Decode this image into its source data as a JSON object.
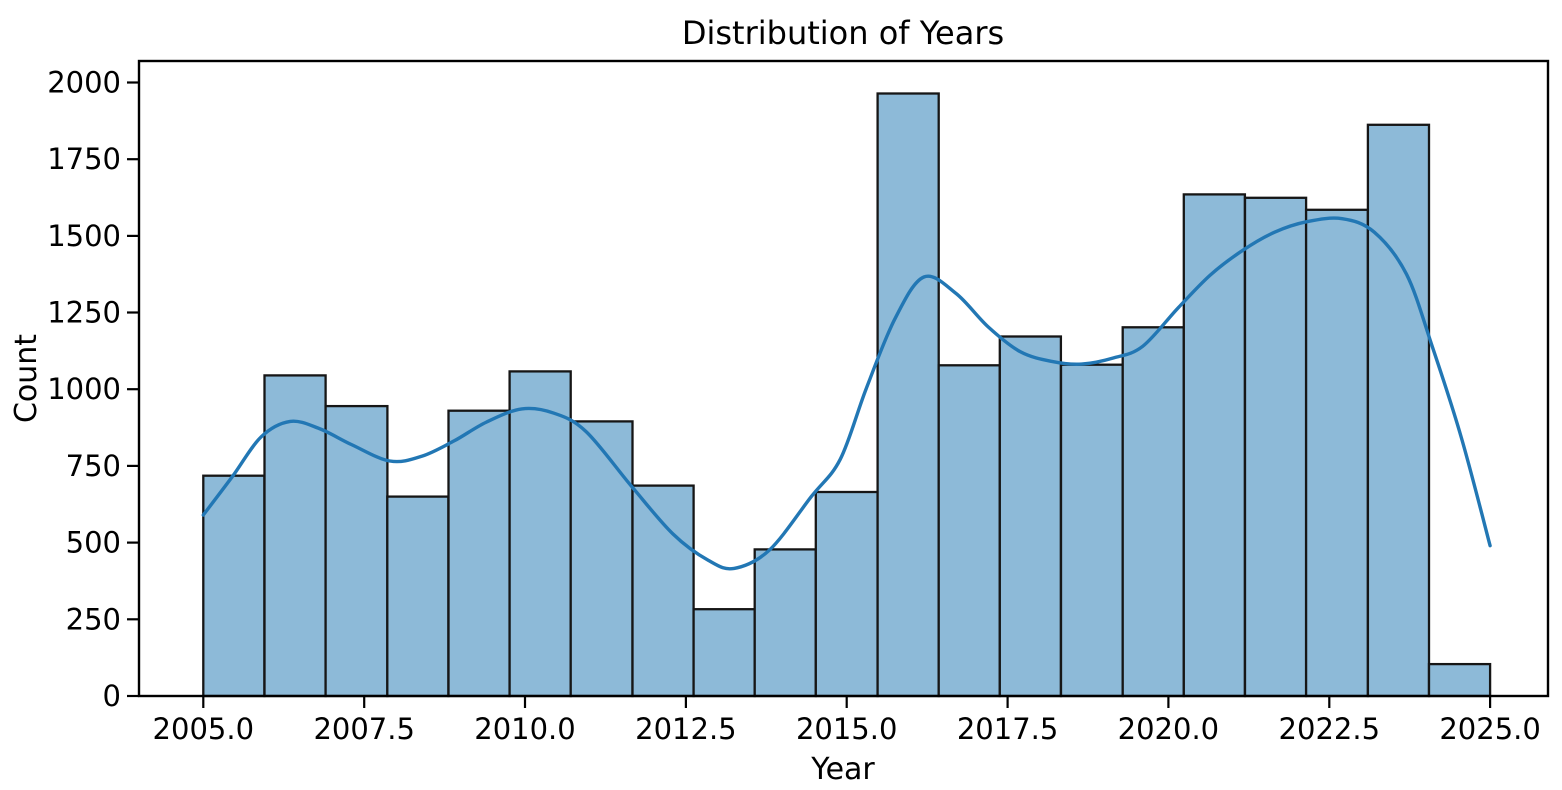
{
  "figure": {
    "background": "#ffffff"
  },
  "chart_data": {
    "type": "histogram",
    "title": "Distribution of Years",
    "xlabel": "Year",
    "ylabel": "Count",
    "kde_overlay": true,
    "grid": false,
    "legend": false,
    "xlim": [
      2004.0,
      2025.9
    ],
    "ylim": [
      0,
      2070
    ],
    "x_ticks": [
      {
        "value": 2005.0,
        "label": "2005.0"
      },
      {
        "value": 2007.5,
        "label": "2007.5"
      },
      {
        "value": 2010.0,
        "label": "2010.0"
      },
      {
        "value": 2012.5,
        "label": "2012.5"
      },
      {
        "value": 2015.0,
        "label": "2015.0"
      },
      {
        "value": 2017.5,
        "label": "2017.5"
      },
      {
        "value": 2020.0,
        "label": "2020.0"
      },
      {
        "value": 2022.5,
        "label": "2022.5"
      },
      {
        "value": 2025.0,
        "label": "2025.0"
      }
    ],
    "y_ticks": [
      {
        "value": 0,
        "label": "0"
      },
      {
        "value": 250,
        "label": "250"
      },
      {
        "value": 500,
        "label": "500"
      },
      {
        "value": 750,
        "label": "750"
      },
      {
        "value": 1000,
        "label": "1000"
      },
      {
        "value": 1250,
        "label": "1250"
      },
      {
        "value": 1500,
        "label": "1500"
      },
      {
        "value": 1750,
        "label": "1750"
      },
      {
        "value": 2000,
        "label": "2000"
      }
    ],
    "bins": {
      "n_bins": 21,
      "range": [
        2005.0,
        2025.0
      ],
      "bin_width_years": 0.952,
      "edges": [
        2005.0,
        2005.95,
        2006.9,
        2007.86,
        2008.81,
        2009.76,
        2010.71,
        2011.67,
        2012.62,
        2013.57,
        2014.52,
        2015.48,
        2016.43,
        2017.38,
        2018.33,
        2019.29,
        2020.24,
        2021.19,
        2022.14,
        2023.1,
        2024.05,
        2025.0
      ]
    },
    "counts": [
      718,
      1045,
      945,
      650,
      930,
      1058,
      895,
      686,
      283,
      478,
      665,
      1964,
      1078,
      1172,
      1080,
      1202,
      1635,
      1624,
      1585,
      1862,
      104
    ],
    "kde_points": [
      [
        2005.0,
        590
      ],
      [
        2005.45,
        715
      ],
      [
        2005.9,
        845
      ],
      [
        2006.35,
        895
      ],
      [
        2006.8,
        872
      ],
      [
        2007.3,
        820
      ],
      [
        2007.9,
        766
      ],
      [
        2008.4,
        782
      ],
      [
        2008.9,
        832
      ],
      [
        2009.4,
        893
      ],
      [
        2009.95,
        936
      ],
      [
        2010.45,
        922
      ],
      [
        2010.95,
        862
      ],
      [
        2011.65,
        685
      ],
      [
        2012.3,
        528
      ],
      [
        2012.85,
        442
      ],
      [
        2013.25,
        416
      ],
      [
        2013.8,
        476
      ],
      [
        2014.45,
        650
      ],
      [
        2014.9,
        772
      ],
      [
        2015.3,
        1000
      ],
      [
        2015.75,
        1230
      ],
      [
        2016.2,
        1366
      ],
      [
        2016.7,
        1312
      ],
      [
        2017.2,
        1203
      ],
      [
        2017.7,
        1122
      ],
      [
        2018.2,
        1090
      ],
      [
        2018.65,
        1082
      ],
      [
        2019.15,
        1102
      ],
      [
        2019.6,
        1140
      ],
      [
        2020.15,
        1265
      ],
      [
        2020.65,
        1372
      ],
      [
        2021.15,
        1452
      ],
      [
        2021.65,
        1512
      ],
      [
        2022.15,
        1546
      ],
      [
        2022.7,
        1556
      ],
      [
        2023.2,
        1512
      ],
      [
        2023.7,
        1375
      ],
      [
        2024.1,
        1140
      ],
      [
        2024.55,
        845
      ],
      [
        2025.0,
        490
      ]
    ],
    "colors": {
      "bar_fill": "#8dbad8",
      "bar_edge": "#161616",
      "kde_line": "#2277b4",
      "axis": "#000000",
      "text": "#000000",
      "background": "#ffffff"
    }
  }
}
